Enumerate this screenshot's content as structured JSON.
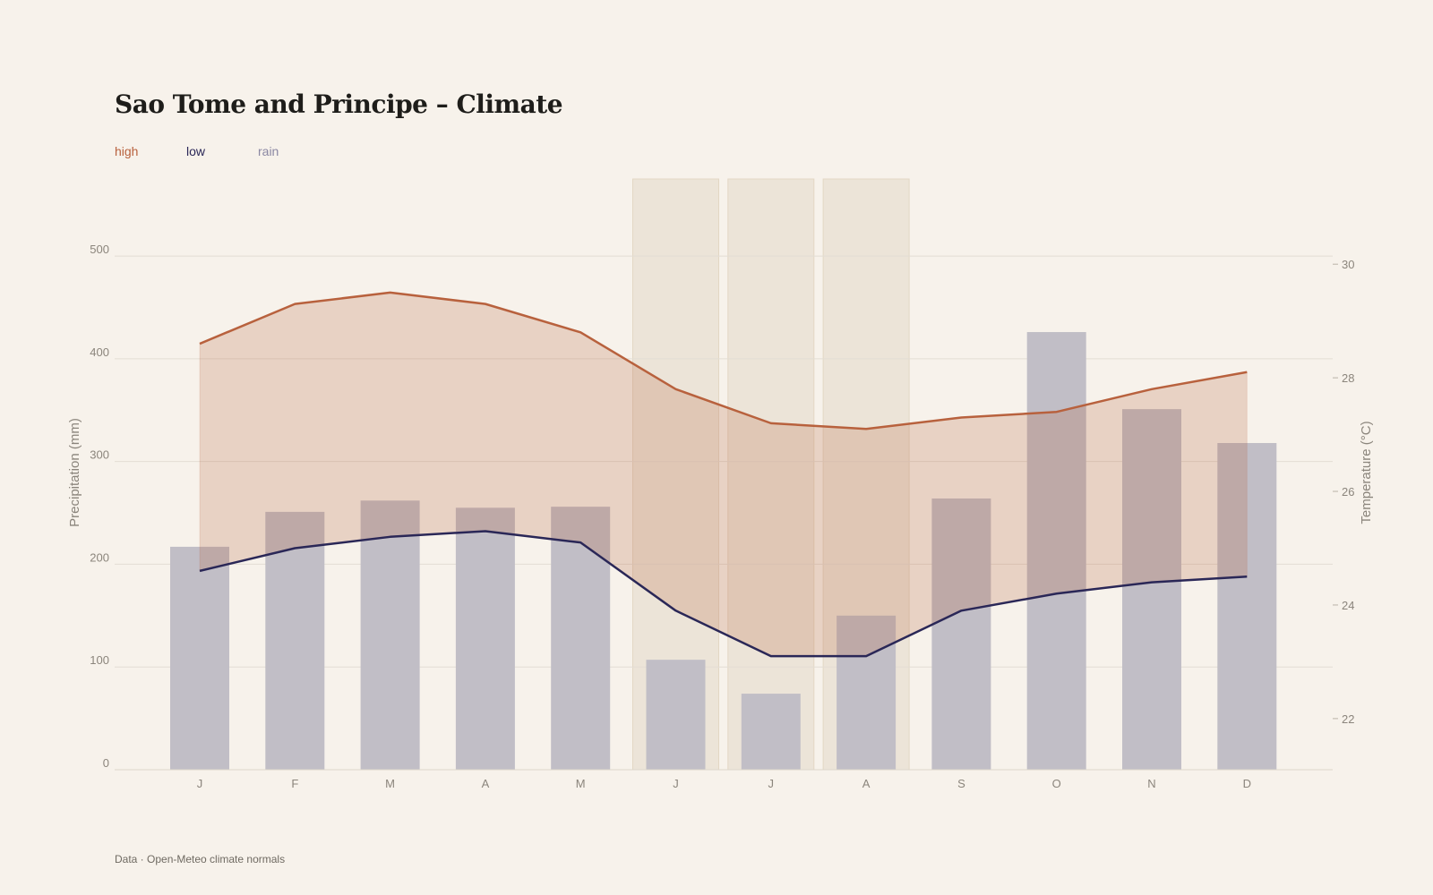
{
  "title": "Sao Tome and Principe – Climate",
  "legend": {
    "high": {
      "label": "high",
      "color": "#b8613d"
    },
    "low": {
      "label": "low",
      "color": "#2a2757"
    },
    "rain": {
      "label": "rain",
      "color": "#8b88a3"
    }
  },
  "footer": "Data · Open-Meteo climate normals",
  "chart_data": {
    "type": "bar",
    "title": "Sao Tome and Principe – Climate",
    "categories": [
      "J",
      "F",
      "M",
      "A",
      "M",
      "J",
      "J",
      "A",
      "S",
      "O",
      "N",
      "D"
    ],
    "highlighted_categories": [
      5,
      6,
      7
    ],
    "left_axis": {
      "label": "Precipitation (mm)",
      "ylim": [
        0,
        575
      ],
      "ticks": [
        0,
        100,
        200,
        300,
        400,
        500
      ]
    },
    "right_axis": {
      "label": "Temperature (°C)",
      "ylim": [
        21.1,
        31.5
      ],
      "ticks": [
        22,
        24,
        26,
        28,
        30
      ]
    },
    "grid": true,
    "legend_position": "top-left",
    "series": [
      {
        "name": "rain",
        "type": "bar",
        "axis": "left",
        "color": "#8b88a3",
        "values": [
          217,
          251,
          262,
          255,
          256,
          107,
          74,
          150,
          264,
          426,
          351,
          318
        ]
      },
      {
        "name": "high",
        "type": "line",
        "axis": "right",
        "color": "#b8613d",
        "values": [
          28.6,
          29.3,
          29.5,
          29.3,
          28.8,
          27.8,
          27.2,
          27.1,
          27.3,
          27.4,
          27.8,
          28.1
        ]
      },
      {
        "name": "low",
        "type": "line",
        "axis": "right",
        "color": "#2a2757",
        "values": [
          24.6,
          25.0,
          25.2,
          25.3,
          25.1,
          23.9,
          23.1,
          23.1,
          23.9,
          24.2,
          24.4,
          24.5
        ]
      }
    ]
  }
}
